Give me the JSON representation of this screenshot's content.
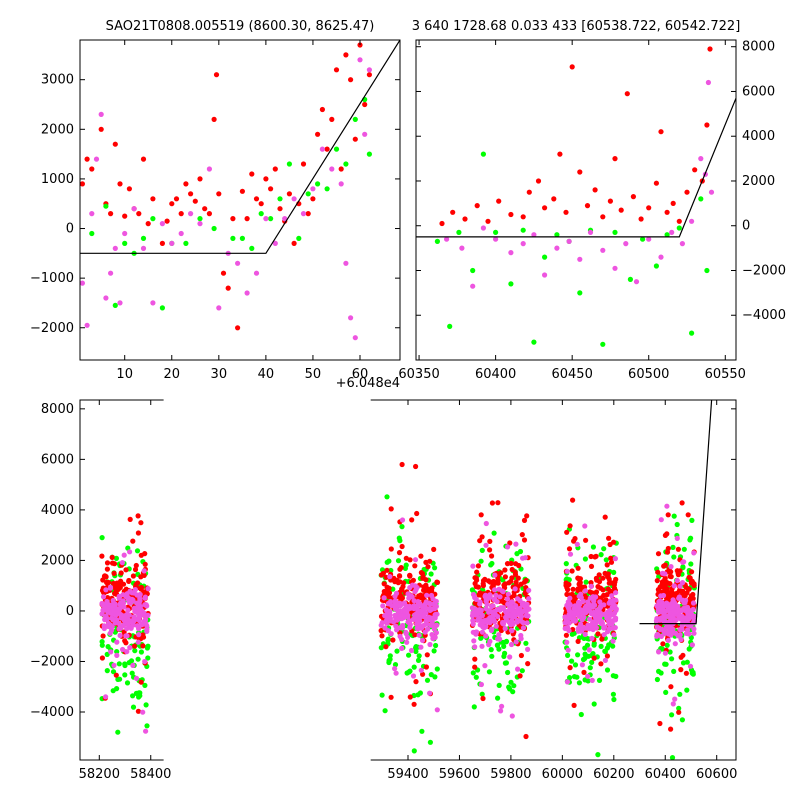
{
  "colors": {
    "red": "#ff0000",
    "green": "#00ff00",
    "pink": "#ee55e0",
    "line": "#000000"
  },
  "chart_data": [
    {
      "type": "scatter",
      "title": "SAO21T0808.005519 (8600.30, 8625.47)",
      "xlim": [
        0.5,
        68.5
      ],
      "ylim": [
        -2650,
        3800
      ],
      "xticks": [
        "10",
        "20",
        "30",
        "40",
        "50",
        "60"
      ],
      "xtick_values": [
        10,
        20,
        30,
        40,
        50,
        60
      ],
      "yticks": [
        "−2000",
        "−1000",
        "0",
        "1000",
        "2000",
        "3000"
      ],
      "ytick_values": [
        -2000,
        -1000,
        0,
        1000,
        2000,
        3000
      ],
      "offset_label": "+6.048e4",
      "yaxis_side": "left",
      "model_line": {
        "x": [
          0.5,
          40,
          68.5
        ],
        "y": [
          -500,
          -500,
          3800
        ]
      },
      "series": [
        {
          "color": "red",
          "points": [
            [
              1,
              900
            ],
            [
              2,
              1400
            ],
            [
              3,
              1200
            ],
            [
              5,
              2000
            ],
            [
              6,
              500
            ],
            [
              7,
              300
            ],
            [
              8,
              1700
            ],
            [
              9,
              900
            ],
            [
              10,
              250
            ],
            [
              11,
              800
            ],
            [
              12,
              400
            ],
            [
              13,
              300
            ],
            [
              14,
              1400
            ],
            [
              15,
              100
            ],
            [
              16,
              600
            ],
            [
              18,
              -300
            ],
            [
              19,
              150
            ],
            [
              20,
              500
            ],
            [
              21,
              600
            ],
            [
              22,
              300
            ],
            [
              23,
              900
            ],
            [
              24,
              700
            ],
            [
              25,
              550
            ],
            [
              26,
              1000
            ],
            [
              27,
              400
            ],
            [
              28,
              300
            ],
            [
              29,
              2200
            ],
            [
              29.5,
              3100
            ],
            [
              30,
              700
            ],
            [
              31,
              -900
            ],
            [
              32,
              -1200
            ],
            [
              33,
              200
            ],
            [
              34,
              -2000
            ],
            [
              35,
              750
            ],
            [
              36,
              200
            ],
            [
              37,
              1100
            ],
            [
              38,
              600
            ],
            [
              39,
              500
            ],
            [
              40,
              1000
            ],
            [
              41,
              800
            ],
            [
              42,
              1200
            ],
            [
              43,
              400
            ],
            [
              44,
              150
            ],
            [
              45,
              700
            ],
            [
              46,
              -300
            ],
            [
              47,
              500
            ],
            [
              48,
              1300
            ],
            [
              49,
              300
            ],
            [
              50,
              600
            ],
            [
              51,
              1900
            ],
            [
              52,
              2400
            ],
            [
              53,
              1600
            ],
            [
              54,
              2200
            ],
            [
              55,
              3200
            ],
            [
              56,
              1200
            ],
            [
              57,
              3500
            ],
            [
              58,
              3000
            ],
            [
              59,
              1800
            ],
            [
              60,
              3700
            ],
            [
              61,
              2500
            ],
            [
              62,
              3100
            ]
          ]
        },
        {
          "color": "green",
          "points": [
            [
              3,
              -100
            ],
            [
              6,
              450
            ],
            [
              8,
              -1550
            ],
            [
              10,
              -300
            ],
            [
              12,
              -500
            ],
            [
              14,
              -200
            ],
            [
              16,
              200
            ],
            [
              18,
              -1600
            ],
            [
              20,
              -300
            ],
            [
              23,
              -300
            ],
            [
              26,
              200
            ],
            [
              29,
              0
            ],
            [
              33,
              -200
            ],
            [
              35,
              -200
            ],
            [
              37,
              -400
            ],
            [
              39,
              300
            ],
            [
              41,
              200
            ],
            [
              43,
              600
            ],
            [
              45,
              1300
            ],
            [
              47,
              -200
            ],
            [
              49,
              700
            ],
            [
              51,
              900
            ],
            [
              53,
              800
            ],
            [
              55,
              1600
            ],
            [
              57,
              1300
            ],
            [
              59,
              2200
            ],
            [
              61,
              2600
            ],
            [
              62,
              1500
            ]
          ]
        },
        {
          "color": "pink",
          "points": [
            [
              1,
              -1100
            ],
            [
              2,
              -1950
            ],
            [
              3,
              300
            ],
            [
              4,
              1400
            ],
            [
              5,
              2300
            ],
            [
              6,
              -1400
            ],
            [
              7,
              -900
            ],
            [
              8,
              -400
            ],
            [
              9,
              -1500
            ],
            [
              10,
              -100
            ],
            [
              12,
              400
            ],
            [
              14,
              -400
            ],
            [
              16,
              -1500
            ],
            [
              18,
              100
            ],
            [
              20,
              -300
            ],
            [
              22,
              -100
            ],
            [
              24,
              300
            ],
            [
              26,
              100
            ],
            [
              28,
              1200
            ],
            [
              30,
              -1600
            ],
            [
              32,
              -500
            ],
            [
              34,
              -700
            ],
            [
              36,
              -1300
            ],
            [
              38,
              -900
            ],
            [
              40,
              200
            ],
            [
              42,
              -300
            ],
            [
              44,
              200
            ],
            [
              46,
              600
            ],
            [
              48,
              300
            ],
            [
              50,
              800
            ],
            [
              52,
              1600
            ],
            [
              54,
              1200
            ],
            [
              56,
              900
            ],
            [
              57,
              -700
            ],
            [
              58,
              -1800
            ],
            [
              59,
              -2200
            ],
            [
              60,
              3400
            ],
            [
              61,
              1900
            ],
            [
              62,
              3200
            ]
          ]
        }
      ]
    },
    {
      "type": "scatter",
      "title": "3 640 1728.68 0.033 433 [60538.722, 60542.722]",
      "xlim": [
        60348,
        60557
      ],
      "ylim": [
        -6000,
        8300
      ],
      "xticks": [
        "60350",
        "60400",
        "60450",
        "60500",
        "60550"
      ],
      "xtick_values": [
        60350,
        60400,
        60450,
        60500,
        60550
      ],
      "yticks": [
        "−4000",
        "−2000",
        "0",
        "2000",
        "4000",
        "6000",
        "8000"
      ],
      "ytick_values": [
        -4000,
        -2000,
        0,
        2000,
        4000,
        6000,
        8000
      ],
      "yaxis_side": "right",
      "model_line": {
        "x": [
          60348,
          60520,
          60557
        ],
        "y": [
          -500,
          -500,
          5700
        ]
      },
      "series": [
        {
          "color": "red",
          "points": [
            [
              60365,
              100
            ],
            [
              60372,
              600
            ],
            [
              60380,
              300
            ],
            [
              60388,
              900
            ],
            [
              60395,
              200
            ],
            [
              60402,
              1100
            ],
            [
              60410,
              500
            ],
            [
              60418,
              400
            ],
            [
              60422,
              1500
            ],
            [
              60428,
              2000
            ],
            [
              60432,
              800
            ],
            [
              60438,
              1200
            ],
            [
              60442,
              3200
            ],
            [
              60446,
              600
            ],
            [
              60450,
              7100
            ],
            [
              60455,
              2400
            ],
            [
              60460,
              900
            ],
            [
              60465,
              1600
            ],
            [
              60470,
              400
            ],
            [
              60475,
              1100
            ],
            [
              60478,
              3000
            ],
            [
              60482,
              700
            ],
            [
              60486,
              5900
            ],
            [
              60490,
              1300
            ],
            [
              60495,
              300
            ],
            [
              60500,
              800
            ],
            [
              60505,
              1900
            ],
            [
              60508,
              4200
            ],
            [
              60512,
              600
            ],
            [
              60516,
              1000
            ],
            [
              60520,
              200
            ],
            [
              60525,
              1500
            ],
            [
              60530,
              2500
            ],
            [
              60535,
              2000
            ],
            [
              60538,
              4500
            ],
            [
              60540,
              7900
            ]
          ]
        },
        {
          "color": "green",
          "points": [
            [
              60362,
              -700
            ],
            [
              60370,
              -4500
            ],
            [
              60376,
              -300
            ],
            [
              60385,
              -2000
            ],
            [
              60392,
              3200
            ],
            [
              60400,
              -300
            ],
            [
              60410,
              -2600
            ],
            [
              60418,
              -200
            ],
            [
              60425,
              -5200
            ],
            [
              60432,
              -1400
            ],
            [
              60440,
              -400
            ],
            [
              60448,
              -700
            ],
            [
              60455,
              -3000
            ],
            [
              60462,
              -200
            ],
            [
              60470,
              -5300
            ],
            [
              60478,
              -300
            ],
            [
              60488,
              -2400
            ],
            [
              60496,
              -600
            ],
            [
              60505,
              -1800
            ],
            [
              60512,
              -400
            ],
            [
              60520,
              -100
            ],
            [
              60528,
              -4800
            ],
            [
              60534,
              1200
            ],
            [
              60538,
              -2000
            ]
          ]
        },
        {
          "color": "pink",
          "points": [
            [
              60368,
              -600
            ],
            [
              60378,
              -1000
            ],
            [
              60385,
              -2700
            ],
            [
              60392,
              -100
            ],
            [
              60400,
              -600
            ],
            [
              60410,
              -1200
            ],
            [
              60418,
              -800
            ],
            [
              60425,
              -400
            ],
            [
              60432,
              -2200
            ],
            [
              60440,
              -1000
            ],
            [
              60448,
              -700
            ],
            [
              60455,
              -1500
            ],
            [
              60462,
              -300
            ],
            [
              60470,
              -1100
            ],
            [
              60478,
              -1900
            ],
            [
              60485,
              -800
            ],
            [
              60492,
              -2500
            ],
            [
              60500,
              -600
            ],
            [
              60508,
              -1400
            ],
            [
              60515,
              -300
            ],
            [
              60522,
              -800
            ],
            [
              60528,
              200
            ],
            [
              60534,
              3000
            ],
            [
              60537,
              2300
            ],
            [
              60539,
              6400
            ],
            [
              60541,
              1500
            ]
          ]
        }
      ]
    },
    {
      "type": "scatter",
      "title": "",
      "xlim": [
        58125,
        60675
      ],
      "ylim": [
        -5900,
        8350
      ],
      "xticks": [
        "58200",
        "58400",
        "59400",
        "59600",
        "59800",
        "60000",
        "60200",
        "60400",
        "60600"
      ],
      "xtick_values": [
        58200,
        58400,
        59400,
        59600,
        59800,
        60000,
        60200,
        60400,
        60600
      ],
      "yticks": [
        "−4000",
        "−2000",
        "0",
        "2000",
        "4000",
        "6000",
        "8000"
      ],
      "ytick_values": [
        -4000,
        -2000,
        0,
        2000,
        4000,
        6000,
        8000
      ],
      "yaxis_side": "left",
      "model_line": {
        "x": [
          60300,
          60520,
          60580
        ],
        "y": [
          -500,
          -500,
          8350
        ]
      },
      "segments": [
        [
          58125,
          58450
        ],
        [
          59255,
          60675
        ]
      ],
      "clusters": [
        {
          "center": 58300,
          "width": 90
        },
        {
          "center": 59405,
          "width": 110
        },
        {
          "center": 59760,
          "width": 110
        },
        {
          "center": 60110,
          "width": 100
        },
        {
          "center": 60440,
          "width": 75
        }
      ]
    }
  ]
}
